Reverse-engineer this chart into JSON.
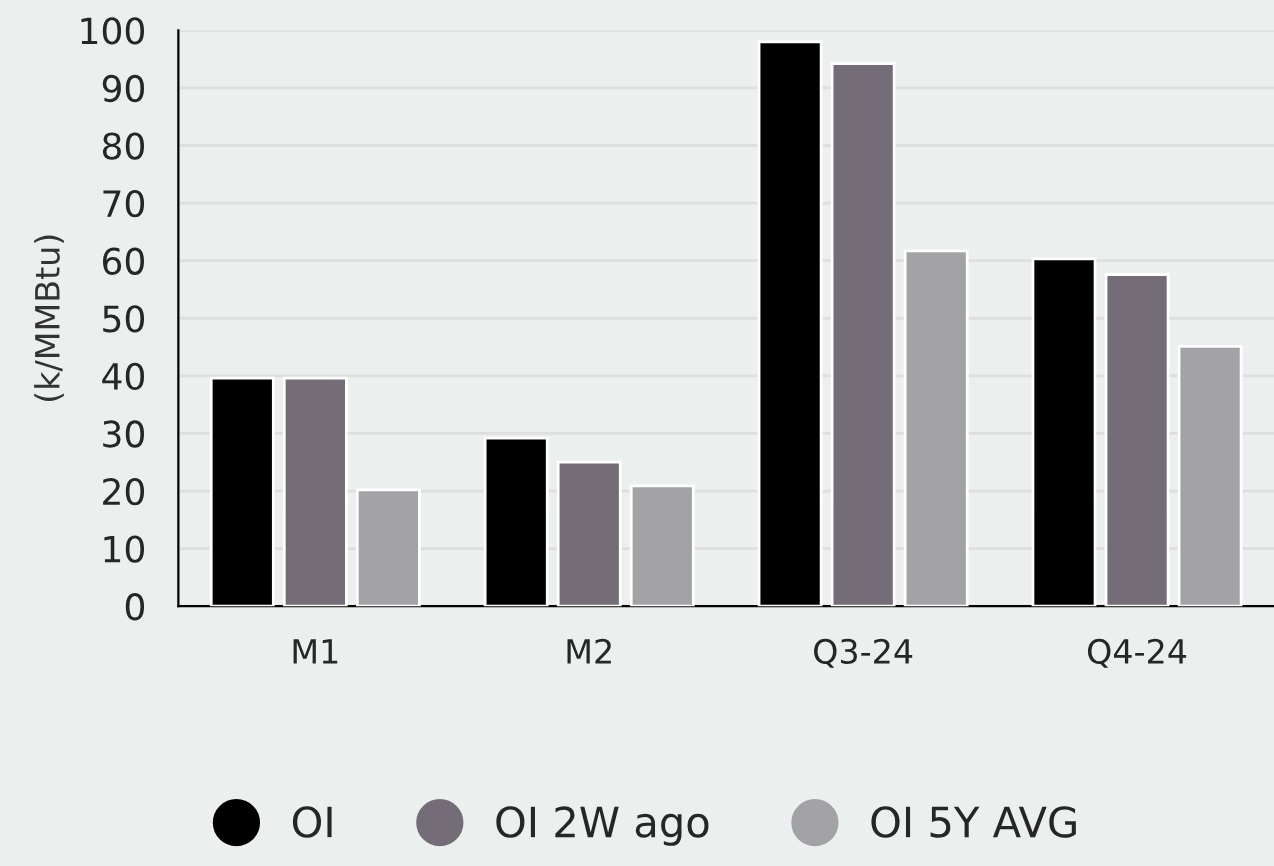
{
  "chart_data": {
    "type": "bar",
    "ylabel": "(k/MMBtu)",
    "categories": [
      "M1",
      "M2",
      "Q3-24",
      "Q4-24"
    ],
    "series": [
      {
        "name": "OI",
        "color": "#000000",
        "values": [
          39.6,
          29.2,
          98.0,
          60.3
        ]
      },
      {
        "name": "OI 2W ago",
        "color": "#746d78",
        "values": [
          39.6,
          25.0,
          94.2,
          57.6
        ]
      },
      {
        "name": "OI 5Y AVG",
        "color": "#a3a2a6",
        "values": [
          20.2,
          20.9,
          61.7,
          45.1
        ]
      }
    ],
    "ylim": [
      0,
      100
    ],
    "yticks": [
      0,
      10,
      20,
      30,
      40,
      50,
      60,
      70,
      80,
      90,
      100
    ],
    "grid": "y",
    "legend": "bottom",
    "marker": "circle"
  }
}
